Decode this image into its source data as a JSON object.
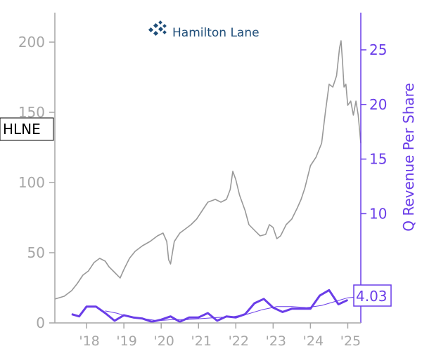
{
  "logo": {
    "text": "Hamilton Lane"
  },
  "ticker": "HLNE",
  "last_value_label": "4.03",
  "colors": {
    "price_line": "#999999",
    "revenue_line": "#6a3de8",
    "revenue_trend": "#6a3de8",
    "left_axis": "#a6a6a6",
    "right_axis": "#6a3de8",
    "logo": "#1f4e79"
  },
  "chart_data": {
    "type": "line",
    "title": "",
    "xlabel": "",
    "ylabel_left": "",
    "ylabel_right": "Q Revenue Per Share",
    "x_range": [
      2017.15,
      2025.35
    ],
    "ylim_left": [
      0,
      220
    ],
    "ylim_right": [
      0,
      28
    ],
    "x_ticks": [
      {
        "x": 2018.0,
        "label": "'18"
      },
      {
        "x": 2019.0,
        "label": "'19"
      },
      {
        "x": 2020.0,
        "label": "'20"
      },
      {
        "x": 2021.0,
        "label": "'21"
      },
      {
        "x": 2022.0,
        "label": "'22"
      },
      {
        "x": 2023.0,
        "label": "'23"
      },
      {
        "x": 2024.0,
        "label": "'24"
      },
      {
        "x": 2025.0,
        "label": "'25"
      }
    ],
    "y_left_ticks": [
      0,
      50,
      100,
      150,
      200
    ],
    "y_right_ticks": [
      10,
      15,
      20,
      25
    ],
    "series": [
      {
        "axis": "left",
        "style": "price",
        "points": [
          [
            2017.15,
            17
          ],
          [
            2017.4,
            19
          ],
          [
            2017.6,
            23
          ],
          [
            2017.75,
            28
          ],
          [
            2017.9,
            34
          ],
          [
            2018.05,
            37
          ],
          [
            2018.2,
            43
          ],
          [
            2018.35,
            46
          ],
          [
            2018.5,
            44
          ],
          [
            2018.6,
            40
          ],
          [
            2018.75,
            36
          ],
          [
            2018.9,
            32
          ],
          [
            2019.0,
            38
          ],
          [
            2019.15,
            46
          ],
          [
            2019.3,
            51
          ],
          [
            2019.5,
            55
          ],
          [
            2019.7,
            58
          ],
          [
            2019.9,
            62
          ],
          [
            2020.05,
            64
          ],
          [
            2020.15,
            58
          ],
          [
            2020.2,
            45
          ],
          [
            2020.25,
            42
          ],
          [
            2020.35,
            58
          ],
          [
            2020.5,
            64
          ],
          [
            2020.65,
            67
          ],
          [
            2020.8,
            70
          ],
          [
            2020.95,
            74
          ],
          [
            2021.1,
            80
          ],
          [
            2021.25,
            86
          ],
          [
            2021.45,
            88
          ],
          [
            2021.6,
            86
          ],
          [
            2021.75,
            88
          ],
          [
            2021.85,
            95
          ],
          [
            2021.92,
            108
          ],
          [
            2022.0,
            102
          ],
          [
            2022.1,
            91
          ],
          [
            2022.25,
            80
          ],
          [
            2022.35,
            70
          ],
          [
            2022.5,
            66
          ],
          [
            2022.65,
            62
          ],
          [
            2022.8,
            63
          ],
          [
            2022.9,
            70
          ],
          [
            2023.0,
            68
          ],
          [
            2023.1,
            60
          ],
          [
            2023.2,
            62
          ],
          [
            2023.35,
            70
          ],
          [
            2023.5,
            74
          ],
          [
            2023.65,
            82
          ],
          [
            2023.75,
            88
          ],
          [
            2023.85,
            96
          ],
          [
            2024.0,
            112
          ],
          [
            2024.15,
            118
          ],
          [
            2024.3,
            128
          ],
          [
            2024.4,
            150
          ],
          [
            2024.5,
            170
          ],
          [
            2024.6,
            168
          ],
          [
            2024.7,
            176
          ],
          [
            2024.78,
            196
          ],
          [
            2024.82,
            201
          ],
          [
            2024.86,
            186
          ],
          [
            2024.9,
            168
          ],
          [
            2024.95,
            170
          ],
          [
            2025.0,
            155
          ],
          [
            2025.08,
            158
          ],
          [
            2025.15,
            148
          ],
          [
            2025.22,
            158
          ],
          [
            2025.28,
            148
          ],
          [
            2025.35,
            128
          ]
        ]
      },
      {
        "axis": "right",
        "style": "revenue",
        "points": [
          [
            2017.6,
            0.8
          ],
          [
            2017.8,
            0.6
          ],
          [
            2018.0,
            1.5
          ],
          [
            2018.25,
            1.5
          ],
          [
            2018.5,
            0.9
          ],
          [
            2018.75,
            0.2
          ],
          [
            2019.0,
            0.7
          ],
          [
            2019.25,
            0.5
          ],
          [
            2019.5,
            0.4
          ],
          [
            2019.75,
            0.1
          ],
          [
            2020.0,
            0.3
          ],
          [
            2020.25,
            0.6
          ],
          [
            2020.5,
            0.1
          ],
          [
            2020.75,
            0.5
          ],
          [
            2021.0,
            0.5
          ],
          [
            2021.25,
            0.9
          ],
          [
            2021.5,
            0.2
          ],
          [
            2021.75,
            0.6
          ],
          [
            2022.0,
            0.5
          ],
          [
            2022.25,
            0.8
          ],
          [
            2022.5,
            1.8
          ],
          [
            2022.75,
            2.2
          ],
          [
            2023.0,
            1.4
          ],
          [
            2023.25,
            1.0
          ],
          [
            2023.5,
            1.3
          ],
          [
            2023.75,
            1.3
          ],
          [
            2024.0,
            1.3
          ],
          [
            2024.25,
            2.5
          ],
          [
            2024.5,
            3.0
          ],
          [
            2024.75,
            1.7
          ],
          [
            2025.0,
            2.1
          ]
        ]
      },
      {
        "axis": "right",
        "style": "trend",
        "points": [
          [
            2018.5,
            1.1
          ],
          [
            2018.8,
            0.9
          ],
          [
            2019.1,
            0.6
          ],
          [
            2019.5,
            0.4
          ],
          [
            2019.9,
            0.2
          ],
          [
            2020.3,
            0.3
          ],
          [
            2020.7,
            0.3
          ],
          [
            2021.1,
            0.4
          ],
          [
            2021.5,
            0.5
          ],
          [
            2021.9,
            0.55
          ],
          [
            2022.3,
            0.8
          ],
          [
            2022.7,
            1.2
          ],
          [
            2023.1,
            1.5
          ],
          [
            2023.5,
            1.5
          ],
          [
            2023.9,
            1.4
          ],
          [
            2024.3,
            1.6
          ],
          [
            2024.7,
            2.0
          ],
          [
            2025.0,
            2.3
          ],
          [
            2025.3,
            2.4
          ]
        ]
      }
    ]
  }
}
